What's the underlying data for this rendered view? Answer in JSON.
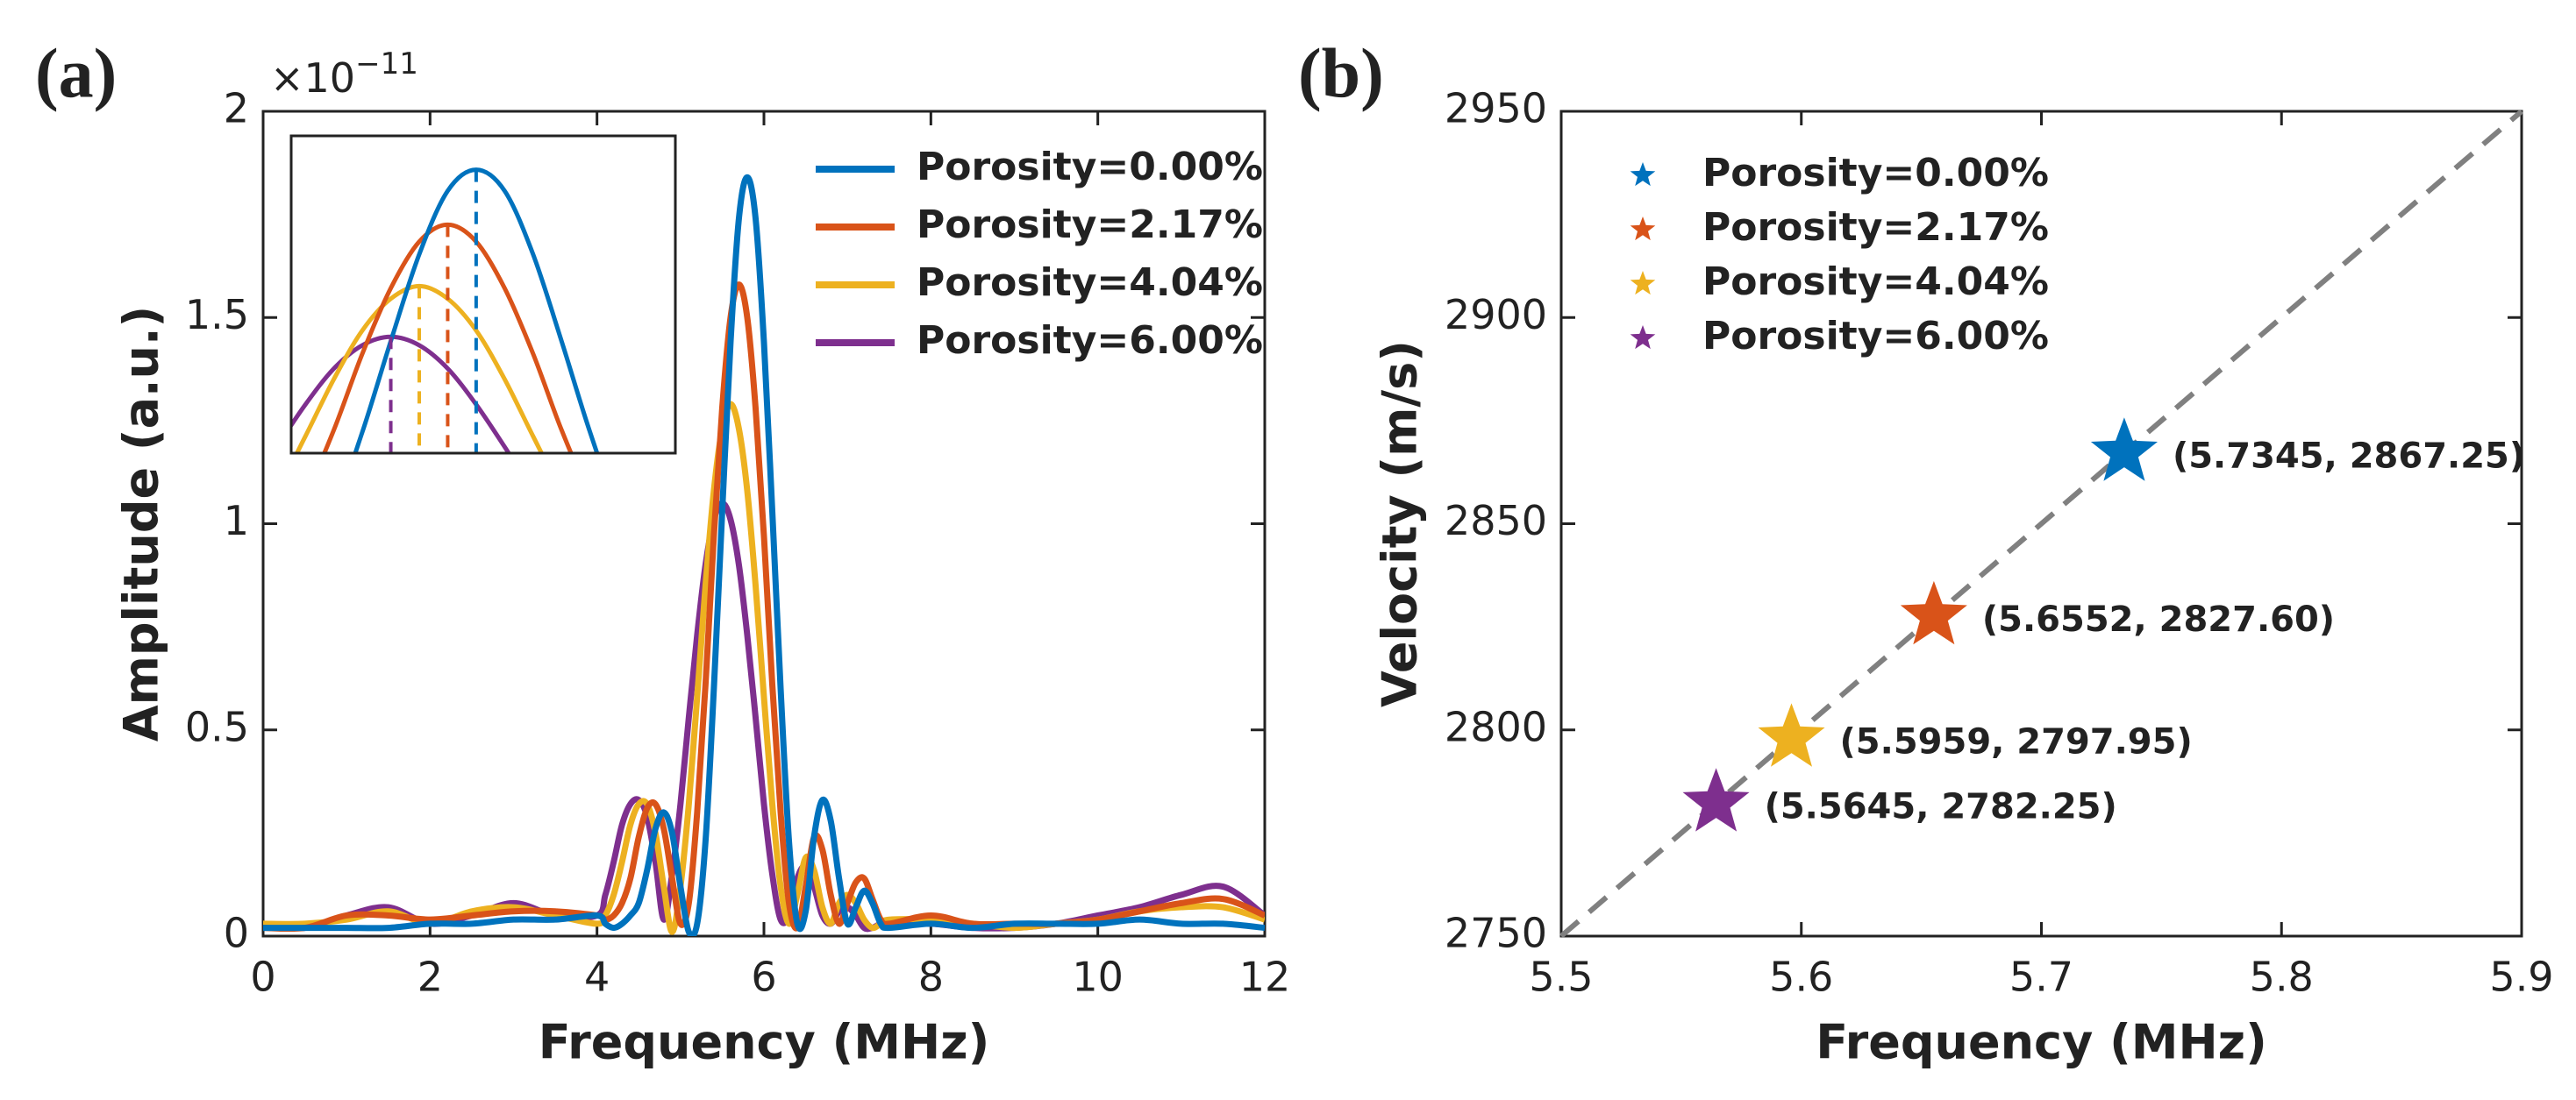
{
  "chart_data": [
    {
      "type": "line",
      "panel_label": "(a)",
      "x_label": "Frequency (MHz)",
      "y_label": "Amplitude (a.u.)",
      "y_scale_label": "×10",
      "y_scale_exponent": "−11",
      "xlim": [
        0,
        12
      ],
      "xticks": [
        0,
        2,
        4,
        6,
        8,
        10,
        12
      ],
      "ylim": [
        0,
        2
      ],
      "yticks": [
        0,
        0.5,
        1,
        1.5,
        2
      ],
      "legend": "upper right",
      "inset": {
        "xlim": [
          5.15,
          6.5
        ],
        "ylim": [
          0.5,
          2.0
        ]
      },
      "x": [
        0,
        0.5,
        1,
        1.5,
        2,
        2.5,
        3,
        3.5,
        4,
        4.1,
        4.2,
        4.3,
        4.4,
        4.5,
        4.6,
        4.7,
        4.8,
        4.9,
        5.0,
        5.1,
        5.2,
        5.3,
        5.4,
        5.5,
        5.6,
        5.7,
        5.8,
        5.9,
        6.0,
        6.1,
        6.2,
        6.3,
        6.4,
        6.5,
        6.6,
        6.7,
        6.8,
        6.9,
        7.0,
        7.1,
        7.2,
        7.3,
        7.4,
        7.5,
        8,
        8.5,
        9,
        9.5,
        10,
        10.5,
        11,
        11.5,
        12
      ],
      "series": [
        {
          "name": "Porosity=0.00%",
          "color": "#0072BD",
          "values": [
            0.02,
            0.02,
            0.02,
            0.02,
            0.03,
            0.03,
            0.04,
            0.04,
            0.05,
            0.03,
            0.02,
            0.03,
            0.05,
            0.08,
            0.16,
            0.26,
            0.3,
            0.25,
            0.12,
            0.01,
            0.03,
            0.23,
            0.6,
            1.03,
            1.44,
            1.74,
            1.84,
            1.74,
            1.44,
            1.03,
            0.6,
            0.23,
            0.03,
            0.06,
            0.24,
            0.33,
            0.28,
            0.14,
            0.03,
            0.07,
            0.11,
            0.08,
            0.03,
            0.02,
            0.03,
            0.02,
            0.03,
            0.03,
            0.03,
            0.04,
            0.03,
            0.03,
            0.02
          ]
        },
        {
          "name": "Porosity=2.17%",
          "color": "#D95319",
          "values": [
            0.02,
            0.02,
            0.05,
            0.05,
            0.04,
            0.05,
            0.06,
            0.06,
            0.05,
            0.04,
            0.05,
            0.08,
            0.14,
            0.24,
            0.31,
            0.32,
            0.26,
            0.14,
            0.03,
            0.08,
            0.3,
            0.61,
            0.97,
            1.28,
            1.5,
            1.58,
            1.5,
            1.28,
            0.97,
            0.61,
            0.3,
            0.08,
            0.02,
            0.12,
            0.24,
            0.21,
            0.1,
            0.03,
            0.08,
            0.13,
            0.14,
            0.09,
            0.04,
            0.03,
            0.05,
            0.03,
            0.03,
            0.03,
            0.04,
            0.06,
            0.08,
            0.09,
            0.05
          ]
        },
        {
          "name": "Porosity=4.04%",
          "color": "#EDB120",
          "values": [
            0.03,
            0.03,
            0.04,
            0.06,
            0.03,
            0.06,
            0.07,
            0.05,
            0.03,
            0.05,
            0.1,
            0.18,
            0.27,
            0.32,
            0.32,
            0.25,
            0.12,
            0.01,
            0.12,
            0.32,
            0.58,
            0.85,
            1.08,
            1.23,
            1.29,
            1.23,
            1.08,
            0.85,
            0.58,
            0.32,
            0.12,
            0.03,
            0.1,
            0.19,
            0.16,
            0.07,
            0.03,
            0.08,
            0.1,
            0.08,
            0.04,
            0.02,
            0.03,
            0.04,
            0.04,
            0.03,
            0.02,
            0.03,
            0.04,
            0.06,
            0.07,
            0.07,
            0.04
          ]
        },
        {
          "name": "Porosity=6.00%",
          "color": "#7E2F8E",
          "values": [
            0.03,
            0.02,
            0.05,
            0.07,
            0.03,
            0.05,
            0.08,
            0.05,
            0.05,
            0.1,
            0.18,
            0.27,
            0.32,
            0.33,
            0.29,
            0.18,
            0.04,
            0.15,
            0.32,
            0.53,
            0.73,
            0.9,
            1.01,
            1.05,
            1.01,
            0.9,
            0.73,
            0.53,
            0.32,
            0.15,
            0.04,
            0.05,
            0.14,
            0.17,
            0.12,
            0.05,
            0.03,
            0.06,
            0.07,
            0.05,
            0.02,
            0.02,
            0.03,
            0.03,
            0.03,
            0.02,
            0.02,
            0.03,
            0.05,
            0.07,
            0.1,
            0.12,
            0.05
          ]
        }
      ]
    },
    {
      "type": "scatter",
      "panel_label": "(b)",
      "x_label": "Frequency (MHz)",
      "y_label": "Velocity (m/s)",
      "xlim": [
        5.5,
        5.9
      ],
      "xticks": [
        5.5,
        5.6,
        5.7,
        5.8,
        5.9
      ],
      "ylim": [
        2750,
        2950
      ],
      "yticks": [
        2750,
        2800,
        2850,
        2900,
        2950
      ],
      "legend": "upper left",
      "fit_line": {
        "x": [
          5.5,
          5.9
        ],
        "y": [
          2750,
          2950
        ],
        "color": "#808080"
      },
      "series": [
        {
          "name": "Porosity=0.00%",
          "color": "#0072BD",
          "x": [
            5.7345
          ],
          "values": [
            2867.25
          ],
          "value_labels": [
            "(5.7345, 2867.25)"
          ]
        },
        {
          "name": "Porosity=2.17%",
          "color": "#D95319",
          "x": [
            5.6552
          ],
          "values": [
            2827.6
          ],
          "value_labels": [
            "(5.6552, 2827.60)"
          ]
        },
        {
          "name": "Porosity=4.04%",
          "color": "#EDB120",
          "x": [
            5.5959
          ],
          "values": [
            2797.95
          ],
          "value_labels": [
            "(5.5959, 2797.95)"
          ]
        },
        {
          "name": "Porosity=6.00%",
          "color": "#7E2F8E",
          "x": [
            5.5645
          ],
          "values": [
            2782.25
          ],
          "value_labels": [
            "(5.5645, 2782.25)"
          ]
        }
      ]
    }
  ]
}
